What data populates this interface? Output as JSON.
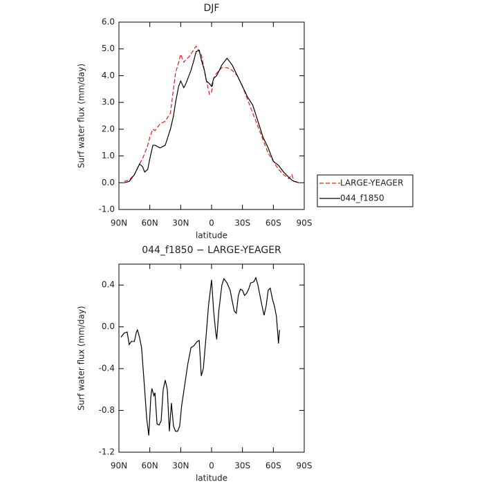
{
  "chart_data": [
    {
      "type": "line",
      "title": "DJF",
      "x_label": "latitude",
      "y_label": "Surf water flux (mm/day)",
      "x": [
        85,
        80,
        75,
        70,
        67,
        65,
        62,
        60,
        57,
        55,
        50,
        45,
        40,
        37,
        35,
        32,
        30,
        27,
        25,
        22,
        20,
        17,
        15,
        12,
        10,
        7,
        5,
        2,
        0,
        -2,
        -5,
        -10,
        -15,
        -20,
        -25,
        -30,
        -35,
        -40,
        -45,
        -50,
        -55,
        -60,
        -65,
        -70,
        -75,
        -78,
        -80,
        -85
      ],
      "series": [
        {
          "name": "LARGE-YEAGER",
          "color": "#e41a1c",
          "dash": true,
          "values": [
            0.05,
            0.1,
            0.3,
            0.7,
            0.9,
            1.1,
            1.4,
            1.7,
            2.0,
            1.95,
            2.2,
            2.3,
            2.6,
            3.5,
            4.1,
            4.5,
            4.8,
            4.5,
            4.6,
            4.7,
            4.8,
            5.0,
            5.1,
            4.9,
            4.8,
            4.2,
            3.8,
            3.3,
            3.4,
            3.9,
            4.1,
            4.3,
            4.3,
            4.2,
            4.0,
            3.6,
            3.1,
            2.6,
            2.1,
            1.6,
            1.1,
            0.8,
            0.5,
            0.3,
            0.15,
            0.3,
            0.05,
            0.02
          ]
        },
        {
          "name": "044_f1850",
          "color": "#000000",
          "dash": false,
          "values": [
            0,
            0.05,
            0.3,
            0.7,
            0.6,
            0.4,
            0.5,
            0.9,
            1.4,
            1.4,
            1.3,
            1.4,
            2.0,
            2.5,
            3.0,
            3.6,
            3.8,
            3.55,
            3.7,
            4.0,
            4.2,
            4.6,
            4.9,
            4.95,
            4.6,
            4.2,
            3.8,
            3.7,
            3.6,
            3.9,
            4.0,
            4.4,
            4.65,
            4.4,
            4.0,
            3.6,
            3.2,
            2.9,
            2.3,
            1.7,
            1.3,
            0.8,
            0.65,
            0.4,
            0.2,
            0.1,
            0.05,
            0.0
          ]
        }
      ],
      "xlim": [
        90,
        -90
      ],
      "xticks": [
        {
          "value": 90,
          "label": "90N"
        },
        {
          "value": 60,
          "label": "60N"
        },
        {
          "value": 30,
          "label": "30N"
        },
        0,
        {
          "value": -30,
          "label": "30S"
        },
        {
          "value": -60,
          "label": "60S"
        },
        {
          "value": -90,
          "label": "90S"
        }
      ],
      "ylim": [
        -1,
        6
      ],
      "yticks": [
        {
          "value": -1,
          "label": "-1.0"
        },
        {
          "value": 0,
          "label": "0.0"
        },
        {
          "value": 1,
          "label": "1.0"
        },
        {
          "value": 2,
          "label": "2.0"
        },
        {
          "value": 3,
          "label": "3.0"
        },
        {
          "value": 4,
          "label": "4.0"
        },
        {
          "value": 5,
          "label": "5.0"
        },
        {
          "value": 6,
          "label": "6.0"
        }
      ],
      "legend": "outside right"
    },
    {
      "type": "line",
      "title": "044_f1850 − LARGE-YEAGER",
      "x_label": "latitude",
      "y_label": "Surf water flux (mm/day)",
      "x": [
        88,
        85,
        82,
        80,
        78,
        75,
        73,
        72,
        70,
        68,
        65,
        63,
        61,
        59,
        58,
        56,
        55,
        53,
        51,
        49,
        47,
        45,
        43,
        41,
        39,
        37,
        35,
        33,
        31,
        29,
        26,
        23,
        20,
        17,
        14,
        12,
        10,
        8,
        5,
        3,
        0,
        -2,
        -4,
        -5,
        -7,
        -10,
        -12,
        -15,
        -18,
        -20,
        -22,
        -24,
        -26,
        -28,
        -30,
        -32,
        -34,
        -36,
        -38,
        -41,
        -43,
        -45,
        -47,
        -49,
        -51,
        -53,
        -55,
        -57,
        -59,
        -61,
        -63,
        -65,
        -66
      ],
      "series": [
        {
          "name": "044_f1850 − LARGE-YEAGER",
          "color": "#000000",
          "dash": false,
          "values": [
            -0.1,
            -0.06,
            -0.05,
            -0.17,
            -0.14,
            -0.14,
            -0.05,
            -0.03,
            -0.1,
            -0.2,
            -0.6,
            -0.88,
            -1.04,
            -0.67,
            -0.59,
            -0.66,
            -0.63,
            -0.93,
            -0.94,
            -0.9,
            -0.6,
            -0.51,
            -0.6,
            -1.0,
            -0.73,
            -0.95,
            -1.0,
            -1.0,
            -0.95,
            -0.75,
            -0.55,
            -0.35,
            -0.2,
            -0.18,
            -0.14,
            -0.13,
            -0.47,
            -0.4,
            -0.05,
            0.2,
            0.45,
            0.15,
            -0.05,
            -0.12,
            0.15,
            0.4,
            0.46,
            0.42,
            0.35,
            0.25,
            0.15,
            0.13,
            0.3,
            0.36,
            0.35,
            0.3,
            0.32,
            0.36,
            0.42,
            0.43,
            0.47,
            0.4,
            0.3,
            0.2,
            0.11,
            0.2,
            0.35,
            0.37,
            0.27,
            0.2,
            0.1,
            -0.16,
            -0.03
          ]
        }
      ],
      "xlim": [
        90,
        -90
      ],
      "xticks": [
        {
          "value": 90,
          "label": "90N"
        },
        {
          "value": 60,
          "label": "60N"
        },
        {
          "value": 30,
          "label": "30N"
        },
        0,
        {
          "value": -30,
          "label": "30S"
        },
        {
          "value": -60,
          "label": "60S"
        },
        {
          "value": -90,
          "label": "90S"
        }
      ],
      "ylim": [
        -1.2,
        0.6
      ],
      "yticks": [
        -1.2,
        -0.8,
        -0.4,
        {
          "value": 0,
          "label": "0.0"
        },
        0.4
      ]
    }
  ]
}
